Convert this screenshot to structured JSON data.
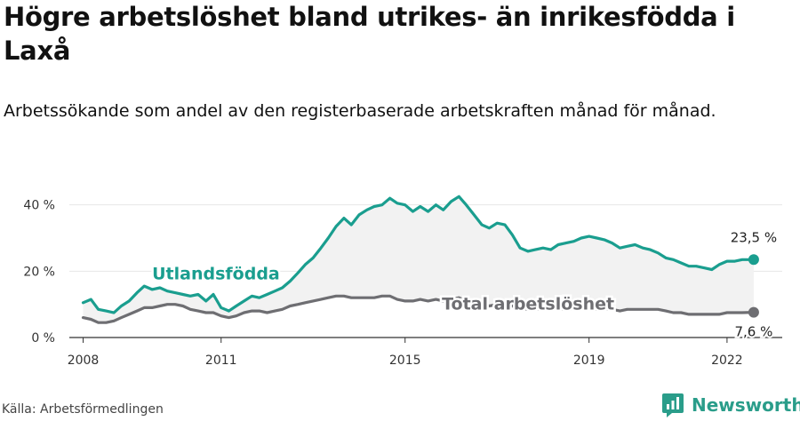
{
  "header": {
    "title": "Högre arbetslöshet bland utrikes- än inrikesfödda i Laxå",
    "subtitle": "Arbetssökande som andel av den registerbaserade arbetskraften månad för månad."
  },
  "footer": {
    "source": "Källa: Arbetsförmedlingen",
    "brand": "Newsworthy"
  },
  "colors": {
    "foreign": "#1a9e8f",
    "total": "#6e6e72",
    "area": "#f2f2f2",
    "grid": "#e6e6e6",
    "brand": "#2a9d8a"
  },
  "chart_data": {
    "type": "line",
    "ylim": [
      0,
      45
    ],
    "y_ticks": [
      0,
      20,
      40
    ],
    "y_tick_labels": [
      "0 %",
      "20 %",
      "40 %"
    ],
    "x_ticks": [
      2008,
      2011,
      2015,
      2019,
      2022
    ],
    "x_tick_labels": [
      "2008",
      "2011",
      "2015",
      "2019",
      "2022"
    ],
    "xlim": [
      2007.7,
      2023.2
    ],
    "grid": true,
    "series": [
      {
        "name": "Utlandsfödda",
        "end_label": "23,5 %",
        "x": [
          2008.0,
          2008.17,
          2008.33,
          2008.5,
          2008.67,
          2008.83,
          2009.0,
          2009.17,
          2009.33,
          2009.5,
          2009.67,
          2009.83,
          2010.0,
          2010.17,
          2010.33,
          2010.5,
          2010.67,
          2010.83,
          2011.0,
          2011.17,
          2011.33,
          2011.5,
          2011.67,
          2011.83,
          2012.0,
          2012.17,
          2012.33,
          2012.5,
          2012.67,
          2012.83,
          2013.0,
          2013.17,
          2013.33,
          2013.5,
          2013.67,
          2013.83,
          2014.0,
          2014.17,
          2014.33,
          2014.5,
          2014.67,
          2014.83,
          2015.0,
          2015.17,
          2015.33,
          2015.5,
          2015.67,
          2015.83,
          2016.0,
          2016.17,
          2016.33,
          2016.5,
          2016.67,
          2016.83,
          2017.0,
          2017.17,
          2017.33,
          2017.5,
          2017.67,
          2017.83,
          2018.0,
          2018.17,
          2018.33,
          2018.5,
          2018.67,
          2018.83,
          2019.0,
          2019.17,
          2019.33,
          2019.5,
          2019.67,
          2019.83,
          2020.0,
          2020.17,
          2020.33,
          2020.5,
          2020.67,
          2020.83,
          2021.0,
          2021.17,
          2021.33,
          2021.5,
          2021.67,
          2021.83,
          2022.0,
          2022.17,
          2022.33,
          2022.58
        ],
        "values": [
          10.5,
          11.5,
          8.5,
          8.0,
          7.5,
          9.5,
          11.0,
          13.5,
          15.5,
          14.5,
          15.0,
          14.0,
          13.5,
          13.0,
          12.5,
          13.0,
          11.0,
          13.0,
          9.0,
          8.0,
          9.5,
          11.0,
          12.5,
          12.0,
          13.0,
          14.0,
          15.0,
          17.0,
          19.5,
          22.0,
          24.0,
          27.0,
          30.0,
          33.5,
          36.0,
          34.0,
          37.0,
          38.5,
          39.5,
          40.0,
          42.0,
          40.5,
          40.0,
          38.0,
          39.5,
          38.0,
          40.0,
          38.5,
          41.0,
          42.5,
          40.0,
          37.0,
          34.0,
          33.0,
          34.5,
          34.0,
          31.0,
          27.0,
          26.0,
          26.5,
          27.0,
          26.5,
          28.0,
          28.5,
          29.0,
          30.0,
          30.5,
          30.0,
          29.5,
          28.5,
          27.0,
          27.5,
          28.0,
          27.0,
          26.5,
          25.5,
          24.0,
          23.5,
          22.5,
          21.5,
          21.5,
          21.0,
          20.5,
          22.0,
          23.0,
          23.0,
          23.5,
          23.5
        ]
      },
      {
        "name": "Total arbetslöshet",
        "end_label": "7,6 %",
        "x": [
          2008.0,
          2008.17,
          2008.33,
          2008.5,
          2008.67,
          2008.83,
          2009.0,
          2009.17,
          2009.33,
          2009.5,
          2009.67,
          2009.83,
          2010.0,
          2010.17,
          2010.33,
          2010.5,
          2010.67,
          2010.83,
          2011.0,
          2011.17,
          2011.33,
          2011.5,
          2011.67,
          2011.83,
          2012.0,
          2012.17,
          2012.33,
          2012.5,
          2012.67,
          2012.83,
          2013.0,
          2013.17,
          2013.33,
          2013.5,
          2013.67,
          2013.83,
          2014.0,
          2014.17,
          2014.33,
          2014.5,
          2014.67,
          2014.83,
          2015.0,
          2015.17,
          2015.33,
          2015.5,
          2015.67,
          2015.83,
          2016.0,
          2016.17,
          2016.33,
          2016.5,
          2016.67,
          2016.83,
          2017.0,
          2017.17,
          2017.33,
          2017.5,
          2017.67,
          2017.83,
          2018.0,
          2018.17,
          2018.33,
          2018.5,
          2018.67,
          2018.83,
          2019.0,
          2019.17,
          2019.33,
          2019.5,
          2019.67,
          2019.83,
          2020.0,
          2020.17,
          2020.33,
          2020.5,
          2020.67,
          2020.83,
          2021.0,
          2021.17,
          2021.33,
          2021.5,
          2021.67,
          2021.83,
          2022.0,
          2022.17,
          2022.33,
          2022.58
        ],
        "values": [
          6.0,
          5.5,
          4.5,
          4.5,
          5.0,
          6.0,
          7.0,
          8.0,
          9.0,
          9.0,
          9.5,
          10.0,
          10.0,
          9.5,
          8.5,
          8.0,
          7.5,
          7.5,
          6.5,
          6.0,
          6.5,
          7.5,
          8.0,
          8.0,
          7.5,
          8.0,
          8.5,
          9.5,
          10.0,
          10.5,
          11.0,
          11.5,
          12.0,
          12.5,
          12.5,
          12.0,
          12.0,
          12.0,
          12.0,
          12.5,
          12.5,
          11.5,
          11.0,
          11.0,
          11.5,
          11.0,
          11.5,
          11.0,
          11.5,
          12.0,
          11.0,
          10.5,
          10.0,
          9.5,
          10.0,
          10.0,
          9.5,
          9.0,
          8.5,
          8.5,
          8.5,
          8.5,
          8.5,
          8.5,
          8.5,
          8.5,
          8.5,
          8.5,
          8.5,
          8.5,
          8.0,
          8.5,
          8.5,
          8.5,
          8.5,
          8.5,
          8.0,
          7.5,
          7.5,
          7.0,
          7.0,
          7.0,
          7.0,
          7.0,
          7.5,
          7.5,
          7.5,
          7.6
        ]
      }
    ]
  }
}
